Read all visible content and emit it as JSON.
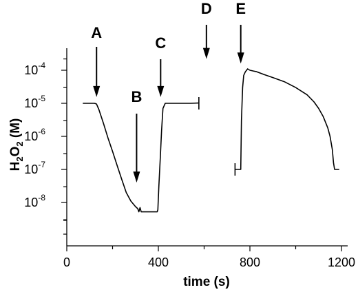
{
  "chart_data": {
    "type": "line",
    "title": "",
    "xlabel": "time (s)",
    "ylabel": {
      "prefix": "H",
      "sub1": "2",
      "mid": "O",
      "sub2": "2",
      "suffix": " (M)"
    },
    "xlim": [
      0,
      1250
    ],
    "ylim": [
      1e-09,
      0.0003
    ],
    "yscale": "log",
    "grid": false,
    "x_ticks": [
      0,
      400,
      800,
      1200
    ],
    "x_tick_labels": [
      "0",
      "400",
      "800",
      "1200"
    ],
    "y_ticks": [
      {
        "value": 1e-08,
        "base": "10",
        "exp": "-8"
      },
      {
        "value": 1e-07,
        "base": "10",
        "exp": "-7"
      },
      {
        "value": 1e-06,
        "base": "10",
        "exp": "-6"
      },
      {
        "value": 1e-05,
        "base": "10",
        "exp": "-5"
      },
      {
        "value": 0.0001,
        "base": "10",
        "exp": "-4"
      }
    ],
    "series": [
      {
        "segment": 1,
        "x": [
          70,
          90,
          110,
          120,
          125,
          130,
          140,
          160,
          180,
          200,
          220,
          240,
          260,
          280,
          300,
          310,
          315,
          320,
          325,
          330,
          340,
          360,
          380,
          395,
          398,
          402,
          408,
          414,
          420,
          430,
          460,
          500,
          540,
          575
        ],
        "y": [
          1e-05,
          1e-05,
          1e-05,
          1e-05,
          9.8e-06,
          9.5e-06,
          6.5e-06,
          2.5e-06,
          9e-07,
          3.5e-07,
          1.3e-07,
          5e-08,
          2e-08,
          1.1e-08,
          7.5e-09,
          6.5e-09,
          5.2e-09,
          7e-09,
          5.2e-09,
          5.2e-09,
          5.2e-09,
          5.2e-09,
          5.2e-09,
          5.2e-09,
          6e-09,
          3e-08,
          2e-07,
          1.5e-06,
          7e-06,
          1e-05,
          1e-05,
          1e-05,
          1e-05,
          1.02e-05
        ]
      },
      {
        "segment": 2,
        "x": [
          735,
          755,
          760,
          763,
          768,
          773,
          780,
          790,
          800,
          815,
          830,
          860,
          900,
          950,
          1000,
          1050,
          1080,
          1100,
          1120,
          1140,
          1150,
          1160,
          1165,
          1170,
          1180,
          1190
        ],
        "y": [
          1e-07,
          1e-07,
          1e-07,
          3e-06,
          3e-05,
          7e-05,
          9e-05,
          0.00011,
          0.0001,
          9.5e-05,
          9e-05,
          7.5e-05,
          6e-05,
          4.5e-05,
          3e-05,
          1.8e-05,
          1.1e-05,
          7e-06,
          4e-06,
          1.8e-06,
          1e-06,
          4e-07,
          1.6e-07,
          1e-07,
          1e-07,
          1e-07
        ]
      }
    ],
    "end_markers": [
      {
        "x": 577,
        "y": 1e-05
      },
      {
        "x": 735,
        "y": 1e-07
      }
    ],
    "annotations": [
      {
        "label": "A",
        "x": 130,
        "arrow_tip_y": 1.55e-05
      },
      {
        "label": "B",
        "x": 305,
        "arrow_tip_y": 4e-08
      },
      {
        "label": "C",
        "x": 410,
        "arrow_tip_y": 1.55e-05
      },
      {
        "label": "D",
        "x": 610,
        "arrow_tip_y": 0.00022
      },
      {
        "label": "E",
        "x": 760,
        "arrow_tip_y": 0.00016
      }
    ]
  }
}
